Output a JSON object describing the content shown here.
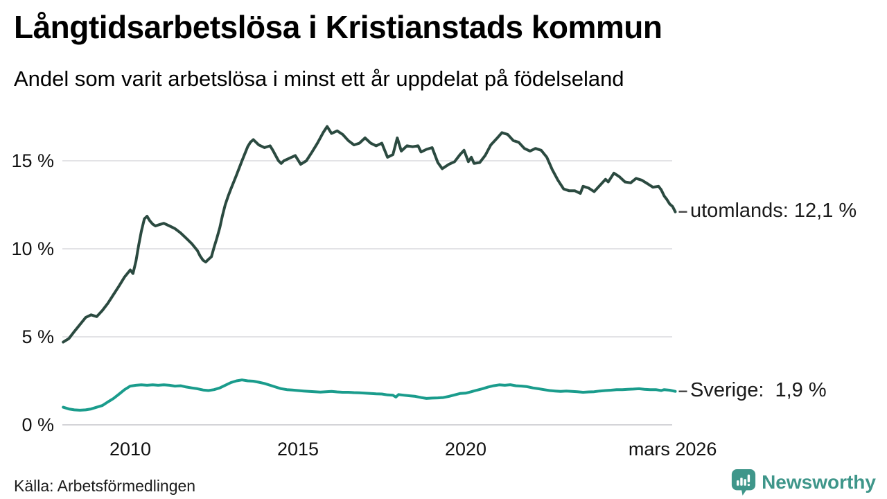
{
  "header": {
    "title": "Långtidsarbetslösa i Kristianstads kommun",
    "subtitle": "Andel som varit arbetslösa i minst ett år uppdelat på födelseland"
  },
  "footer": {
    "source": "Källa: Arbetsförmedlingen",
    "brand_name": "Newsworthy",
    "brand_icon": "bar-chart-speech-bubble-icon",
    "brand_color": "#3f968a"
  },
  "chart_data": {
    "type": "line",
    "title": "Långtidsarbetslösa i Kristianstads kommun",
    "subtitle": "Andel som varit arbetslösa i minst ett år uppdelat på födelseland",
    "xlabel": "",
    "ylabel": "",
    "grid": "horizontal",
    "legend_position": "end-of-line-labels-right",
    "x_axis": {
      "range": [
        2008.0,
        2026.33
      ],
      "ticks": [
        {
          "x": 2010,
          "label": "2010"
        },
        {
          "x": 2015,
          "label": "2015"
        },
        {
          "x": 2020,
          "label": "2020"
        },
        {
          "x": 2026.17,
          "label": "mars 2026"
        }
      ]
    },
    "y_axis": {
      "range": [
        0,
        17.5
      ],
      "unit": "%",
      "ticks": [
        {
          "y": 0,
          "label": "0 %"
        },
        {
          "y": 5,
          "label": "5 %"
        },
        {
          "y": 10,
          "label": "10 %"
        },
        {
          "y": 15,
          "label": "15 %"
        }
      ]
    },
    "series": [
      {
        "name": "utomlands",
        "color": "#2b4a40",
        "end_value": 12.1,
        "end_label": "utomlands: 12,1 %",
        "points": [
          [
            2008.0,
            4.7
          ],
          [
            2008.17,
            4.9
          ],
          [
            2008.33,
            5.3
          ],
          [
            2008.5,
            5.7
          ],
          [
            2008.67,
            6.1
          ],
          [
            2008.83,
            6.25
          ],
          [
            2009.0,
            6.15
          ],
          [
            2009.17,
            6.5
          ],
          [
            2009.33,
            6.9
          ],
          [
            2009.5,
            7.4
          ],
          [
            2009.67,
            7.9
          ],
          [
            2009.83,
            8.4
          ],
          [
            2010.0,
            8.8
          ],
          [
            2010.08,
            8.6
          ],
          [
            2010.17,
            9.3
          ],
          [
            2010.25,
            10.2
          ],
          [
            2010.33,
            11.0
          ],
          [
            2010.42,
            11.7
          ],
          [
            2010.5,
            11.85
          ],
          [
            2010.58,
            11.6
          ],
          [
            2010.67,
            11.4
          ],
          [
            2010.75,
            11.3
          ],
          [
            2010.83,
            11.35
          ],
          [
            2011.0,
            11.45
          ],
          [
            2011.17,
            11.3
          ],
          [
            2011.33,
            11.15
          ],
          [
            2011.5,
            10.9
          ],
          [
            2011.67,
            10.6
          ],
          [
            2011.83,
            10.3
          ],
          [
            2012.0,
            9.9
          ],
          [
            2012.08,
            9.6
          ],
          [
            2012.17,
            9.35
          ],
          [
            2012.25,
            9.25
          ],
          [
            2012.33,
            9.4
          ],
          [
            2012.42,
            9.55
          ],
          [
            2012.5,
            10.1
          ],
          [
            2012.58,
            10.6
          ],
          [
            2012.67,
            11.2
          ],
          [
            2012.75,
            11.9
          ],
          [
            2012.83,
            12.5
          ],
          [
            2012.92,
            13.0
          ],
          [
            2013.0,
            13.4
          ],
          [
            2013.17,
            14.2
          ],
          [
            2013.33,
            15.0
          ],
          [
            2013.5,
            15.8
          ],
          [
            2013.58,
            16.05
          ],
          [
            2013.67,
            16.2
          ],
          [
            2013.75,
            16.05
          ],
          [
            2013.83,
            15.9
          ],
          [
            2014.0,
            15.75
          ],
          [
            2014.17,
            15.85
          ],
          [
            2014.25,
            15.6
          ],
          [
            2014.42,
            15.0
          ],
          [
            2014.5,
            14.85
          ],
          [
            2014.58,
            15.0
          ],
          [
            2014.75,
            15.15
          ],
          [
            2014.92,
            15.3
          ],
          [
            2015.08,
            14.8
          ],
          [
            2015.25,
            15.0
          ],
          [
            2015.42,
            15.5
          ],
          [
            2015.58,
            16.0
          ],
          [
            2015.75,
            16.6
          ],
          [
            2015.87,
            16.95
          ],
          [
            2016.0,
            16.55
          ],
          [
            2016.17,
            16.7
          ],
          [
            2016.33,
            16.5
          ],
          [
            2016.5,
            16.15
          ],
          [
            2016.67,
            15.9
          ],
          [
            2016.83,
            16.0
          ],
          [
            2017.0,
            16.3
          ],
          [
            2017.17,
            16.0
          ],
          [
            2017.33,
            15.85
          ],
          [
            2017.5,
            16.0
          ],
          [
            2017.67,
            15.2
          ],
          [
            2017.83,
            15.35
          ],
          [
            2017.96,
            16.3
          ],
          [
            2018.08,
            15.55
          ],
          [
            2018.25,
            15.85
          ],
          [
            2018.42,
            15.8
          ],
          [
            2018.58,
            15.85
          ],
          [
            2018.67,
            15.5
          ],
          [
            2018.83,
            15.65
          ],
          [
            2019.0,
            15.75
          ],
          [
            2019.17,
            14.9
          ],
          [
            2019.3,
            14.55
          ],
          [
            2019.5,
            14.8
          ],
          [
            2019.67,
            14.95
          ],
          [
            2019.83,
            15.35
          ],
          [
            2019.95,
            15.6
          ],
          [
            2020.08,
            14.95
          ],
          [
            2020.17,
            15.2
          ],
          [
            2020.25,
            14.85
          ],
          [
            2020.42,
            14.9
          ],
          [
            2020.58,
            15.3
          ],
          [
            2020.75,
            15.9
          ],
          [
            2020.92,
            16.25
          ],
          [
            2021.08,
            16.6
          ],
          [
            2021.25,
            16.5
          ],
          [
            2021.42,
            16.15
          ],
          [
            2021.58,
            16.05
          ],
          [
            2021.75,
            15.7
          ],
          [
            2021.92,
            15.55
          ],
          [
            2022.08,
            15.7
          ],
          [
            2022.25,
            15.6
          ],
          [
            2022.42,
            15.2
          ],
          [
            2022.58,
            14.5
          ],
          [
            2022.75,
            13.9
          ],
          [
            2022.92,
            13.4
          ],
          [
            2023.08,
            13.3
          ],
          [
            2023.25,
            13.3
          ],
          [
            2023.42,
            13.15
          ],
          [
            2023.5,
            13.55
          ],
          [
            2023.67,
            13.45
          ],
          [
            2023.83,
            13.25
          ],
          [
            2024.0,
            13.6
          ],
          [
            2024.17,
            13.95
          ],
          [
            2024.25,
            13.8
          ],
          [
            2024.42,
            14.3
          ],
          [
            2024.58,
            14.1
          ],
          [
            2024.75,
            13.8
          ],
          [
            2024.92,
            13.75
          ],
          [
            2025.08,
            14.0
          ],
          [
            2025.25,
            13.9
          ],
          [
            2025.42,
            13.7
          ],
          [
            2025.58,
            13.5
          ],
          [
            2025.75,
            13.55
          ],
          [
            2025.83,
            13.35
          ],
          [
            2025.92,
            13.0
          ],
          [
            2026.0,
            12.8
          ],
          [
            2026.08,
            12.55
          ],
          [
            2026.17,
            12.4
          ],
          [
            2026.25,
            12.1
          ]
        ]
      },
      {
        "name": "Sverige",
        "color": "#1a9c8c",
        "end_value": 1.9,
        "end_label": "Sverige:  1,9 %",
        "points": [
          [
            2008.0,
            1.0
          ],
          [
            2008.17,
            0.9
          ],
          [
            2008.33,
            0.85
          ],
          [
            2008.5,
            0.83
          ],
          [
            2008.67,
            0.85
          ],
          [
            2008.83,
            0.9
          ],
          [
            2009.0,
            1.0
          ],
          [
            2009.17,
            1.1
          ],
          [
            2009.33,
            1.3
          ],
          [
            2009.5,
            1.5
          ],
          [
            2009.67,
            1.75
          ],
          [
            2009.83,
            2.0
          ],
          [
            2010.0,
            2.2
          ],
          [
            2010.17,
            2.25
          ],
          [
            2010.33,
            2.27
          ],
          [
            2010.5,
            2.25
          ],
          [
            2010.67,
            2.27
          ],
          [
            2010.83,
            2.25
          ],
          [
            2011.0,
            2.27
          ],
          [
            2011.17,
            2.25
          ],
          [
            2011.33,
            2.2
          ],
          [
            2011.5,
            2.22
          ],
          [
            2011.67,
            2.15
          ],
          [
            2011.83,
            2.1
          ],
          [
            2012.0,
            2.05
          ],
          [
            2012.17,
            1.98
          ],
          [
            2012.33,
            1.95
          ],
          [
            2012.5,
            2.0
          ],
          [
            2012.67,
            2.1
          ],
          [
            2012.83,
            2.25
          ],
          [
            2013.0,
            2.4
          ],
          [
            2013.17,
            2.5
          ],
          [
            2013.33,
            2.55
          ],
          [
            2013.5,
            2.5
          ],
          [
            2013.67,
            2.48
          ],
          [
            2013.83,
            2.42
          ],
          [
            2014.0,
            2.35
          ],
          [
            2014.17,
            2.25
          ],
          [
            2014.33,
            2.15
          ],
          [
            2014.5,
            2.05
          ],
          [
            2014.67,
            2.0
          ],
          [
            2014.83,
            1.98
          ],
          [
            2015.0,
            1.95
          ],
          [
            2015.17,
            1.92
          ],
          [
            2015.33,
            1.9
          ],
          [
            2015.5,
            1.88
          ],
          [
            2015.67,
            1.86
          ],
          [
            2015.83,
            1.88
          ],
          [
            2016.0,
            1.9
          ],
          [
            2016.17,
            1.87
          ],
          [
            2016.33,
            1.85
          ],
          [
            2016.5,
            1.85
          ],
          [
            2016.67,
            1.83
          ],
          [
            2016.83,
            1.82
          ],
          [
            2017.0,
            1.8
          ],
          [
            2017.17,
            1.78
          ],
          [
            2017.33,
            1.76
          ],
          [
            2017.5,
            1.75
          ],
          [
            2017.67,
            1.7
          ],
          [
            2017.83,
            1.68
          ],
          [
            2017.92,
            1.58
          ],
          [
            2018.0,
            1.72
          ],
          [
            2018.17,
            1.68
          ],
          [
            2018.33,
            1.65
          ],
          [
            2018.5,
            1.62
          ],
          [
            2018.67,
            1.55
          ],
          [
            2018.83,
            1.5
          ],
          [
            2019.0,
            1.52
          ],
          [
            2019.17,
            1.53
          ],
          [
            2019.33,
            1.55
          ],
          [
            2019.5,
            1.62
          ],
          [
            2019.67,
            1.7
          ],
          [
            2019.83,
            1.78
          ],
          [
            2020.0,
            1.8
          ],
          [
            2020.17,
            1.88
          ],
          [
            2020.33,
            1.97
          ],
          [
            2020.5,
            2.05
          ],
          [
            2020.67,
            2.15
          ],
          [
            2020.83,
            2.22
          ],
          [
            2021.0,
            2.27
          ],
          [
            2021.17,
            2.25
          ],
          [
            2021.33,
            2.28
          ],
          [
            2021.5,
            2.22
          ],
          [
            2021.67,
            2.2
          ],
          [
            2021.83,
            2.17
          ],
          [
            2022.0,
            2.1
          ],
          [
            2022.17,
            2.05
          ],
          [
            2022.33,
            2.0
          ],
          [
            2022.5,
            1.95
          ],
          [
            2022.67,
            1.92
          ],
          [
            2022.83,
            1.9
          ],
          [
            2023.0,
            1.92
          ],
          [
            2023.17,
            1.9
          ],
          [
            2023.33,
            1.88
          ],
          [
            2023.5,
            1.85
          ],
          [
            2023.67,
            1.87
          ],
          [
            2023.83,
            1.88
          ],
          [
            2024.0,
            1.92
          ],
          [
            2024.17,
            1.95
          ],
          [
            2024.33,
            1.97
          ],
          [
            2024.5,
            2.0
          ],
          [
            2024.67,
            2.0
          ],
          [
            2024.83,
            2.02
          ],
          [
            2025.0,
            2.03
          ],
          [
            2025.17,
            2.05
          ],
          [
            2025.33,
            2.02
          ],
          [
            2025.5,
            2.0
          ],
          [
            2025.67,
            2.0
          ],
          [
            2025.83,
            1.95
          ],
          [
            2025.92,
            2.0
          ],
          [
            2026.08,
            1.97
          ],
          [
            2026.25,
            1.9
          ]
        ]
      }
    ],
    "colors": {
      "gridline": "#e3e3e6",
      "zero_line": "#d4d4d8",
      "annotation_dash": "#4a4a4a",
      "text": "#111111"
    }
  }
}
